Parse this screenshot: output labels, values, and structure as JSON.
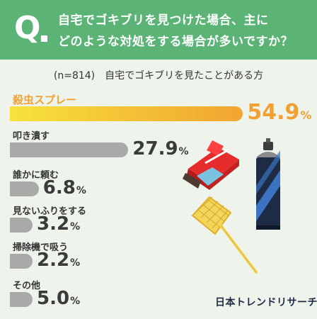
{
  "header": {
    "q_mark": "Q",
    "question_line1": "自宅でゴキブリを見つけた場合、主に",
    "question_line2": "どのような対処をする場合が多いですか？"
  },
  "subtitle": "(n=814)　自宅でゴキブリを見たことがある方",
  "logo": "日本トレンドリサーチ",
  "colors": {
    "header_bg": "#5bb476",
    "highlight": "#f2a033",
    "bar_gray": "#a9a9a9",
    "bg": "#eef4ec"
  },
  "icons": [
    "swatter-box-icon",
    "spray-can-icon",
    "fly-swatter-icon"
  ],
  "chart_data": {
    "type": "bar",
    "orientation": "horizontal",
    "unit": "%",
    "categories": [
      "殺虫スプレー",
      "叩き潰す",
      "誰かに頼む",
      "見ないふりをする",
      "掃除機で吸う",
      "その他"
    ],
    "values": [
      54.9,
      27.9,
      6.8,
      3.2,
      2.2,
      5.0
    ],
    "value_labels": [
      "54.9",
      "27.9",
      "6.8",
      "3.2",
      "2.2",
      "5.0"
    ],
    "highlight_index": 0
  }
}
